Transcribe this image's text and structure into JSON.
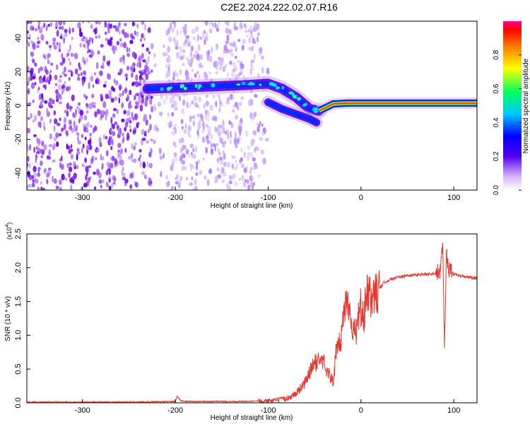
{
  "title": "C2E2.2024.222.02.07.R16",
  "chart_data": [
    {
      "type": "heatmap",
      "xlabel": "Height of straight line (km)",
      "ylabel": "Frequency (Hz)",
      "xlim": [
        -360,
        125
      ],
      "ylim": [
        -50,
        50
      ],
      "xticks": [
        -300,
        -200,
        -100,
        0,
        100
      ],
      "xticklabels": [
        "-300",
        "-200",
        "-100",
        "0",
        "100"
      ],
      "yticks": [
        -40,
        -20,
        0,
        20,
        40
      ],
      "yticklabels": [
        "-40",
        "-20",
        "0",
        "20",
        "40"
      ],
      "colorbar": {
        "label": "Normalized spectral amplitude",
        "range": [
          0,
          1
        ],
        "ticks": [
          0.0,
          0.2,
          0.4,
          0.6,
          0.8
        ],
        "ticklabels": [
          "0.0",
          "0.2",
          "0.4",
          "0.6",
          "0.8"
        ]
      },
      "features": [
        {
          "description": "noise scatter",
          "x_range": [
            -360,
            -100
          ],
          "y_range": [
            -50,
            50
          ]
        },
        {
          "description": "band",
          "x": [
            -230,
            -180,
            -130,
            -100,
            -85,
            -70,
            -55,
            -45
          ],
          "y": [
            10,
            11,
            12,
            13,
            10,
            5,
            -2,
            -3
          ]
        },
        {
          "description": "lower branch",
          "x": [
            -100,
            -85,
            -70,
            -55,
            -48
          ],
          "y": [
            2,
            -2,
            -5,
            -8,
            -10
          ]
        },
        {
          "description": "line",
          "x": [
            -45,
            -30,
            -15,
            0,
            50,
            100,
            125
          ],
          "y": [
            -3,
            1,
            1.5,
            1.5,
            1.5,
            1.5,
            1.5
          ]
        }
      ]
    },
    {
      "type": "line",
      "xlabel": "Height of straight line (km)",
      "ylabel": "SNR (10 * v/v)",
      "multiplier": "(x10",
      "multiplier_exp": "4",
      "multiplier_close": ")",
      "xlim": [
        -360,
        125
      ],
      "ylim": [
        0,
        2.5
      ],
      "xticks": [
        -300,
        -200,
        -100,
        0,
        100
      ],
      "xticklabels": [
        "-300",
        "-200",
        "-100",
        "0",
        "100"
      ],
      "yticks": [
        0,
        0.5,
        1.0,
        1.5,
        2.0,
        2.5
      ],
      "yticklabels": [
        "0.0",
        "0.5",
        "1.0",
        "1.5",
        "2.0",
        "2.5"
      ],
      "color": "#e8352e",
      "series": [
        {
          "x": [
            -360,
            -300,
            -250,
            -200,
            -198,
            -194,
            -190,
            -150,
            -120,
            -100,
            -90,
            -80,
            -70,
            -60,
            -52,
            -45,
            -40,
            -35,
            -30,
            -27,
            -22,
            -18,
            -14,
            -8,
            -4,
            -1,
            3,
            6,
            12,
            18,
            25,
            30,
            40,
            50,
            60,
            70,
            80,
            85,
            88,
            90,
            92,
            95,
            100,
            110,
            125
          ],
          "y": [
            0.01,
            0.01,
            0.01,
            0.02,
            0.1,
            0.03,
            0.02,
            0.02,
            0.02,
            0.03,
            0.04,
            0.06,
            0.14,
            0.3,
            0.55,
            0.65,
            0.6,
            0.45,
            0.3,
            0.72,
            0.9,
            1.4,
            1.55,
            1.02,
            1.1,
            1.45,
            1.2,
            1.6,
            1.55,
            1.65,
            1.78,
            1.82,
            1.86,
            1.88,
            1.9,
            1.9,
            1.92,
            1.95,
            2.4,
            0.8,
            2.2,
            1.98,
            1.9,
            1.87,
            1.84
          ]
        }
      ]
    }
  ]
}
